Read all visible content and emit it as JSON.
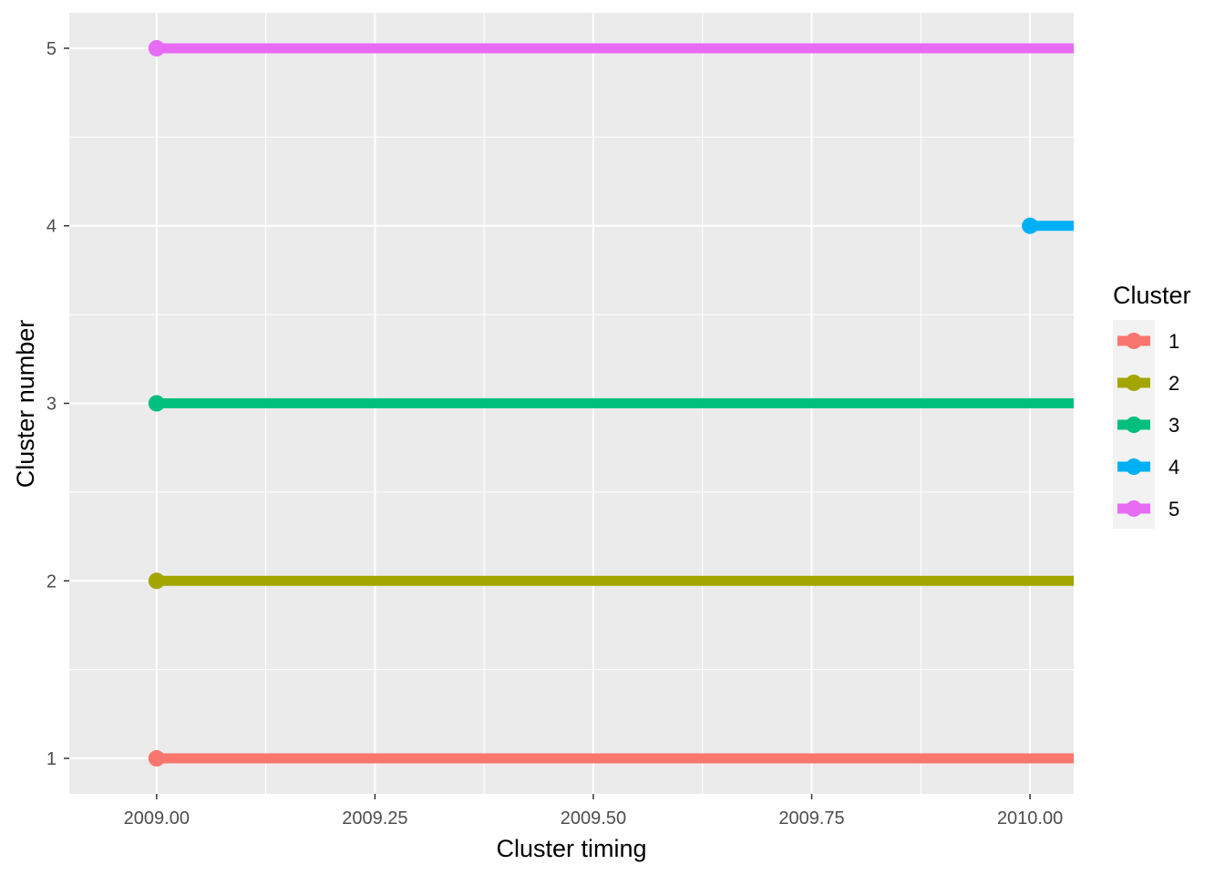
{
  "chart_data": {
    "type": "line",
    "xlabel": "Cluster timing",
    "ylabel": "Cluster number",
    "xlim": [
      2008.9,
      2010.05
    ],
    "ylim": [
      0.8,
      5.2
    ],
    "x_ticks": [
      2009.0,
      2009.25,
      2009.5,
      2009.75,
      2010.0
    ],
    "x_tick_labels": [
      "2009.00",
      "2009.25",
      "2009.50",
      "2009.75",
      "2010.00"
    ],
    "y_ticks": [
      1,
      2,
      3,
      4,
      5
    ],
    "y_tick_labels": [
      "1",
      "2",
      "3",
      "4",
      "5"
    ],
    "grid": true,
    "legend": {
      "title": "Cluster",
      "position": "right"
    },
    "series": [
      {
        "name": "1",
        "color": "#F8766D",
        "x": [
          2009.0,
          2010.05
        ],
        "y": [
          1,
          1
        ]
      },
      {
        "name": "2",
        "color": "#A3A500",
        "x": [
          2009.0,
          2010.05
        ],
        "y": [
          2,
          2
        ]
      },
      {
        "name": "3",
        "color": "#00BF7D",
        "x": [
          2009.0,
          2010.05
        ],
        "y": [
          3,
          3
        ]
      },
      {
        "name": "4",
        "color": "#00B0F6",
        "x": [
          2010.0,
          2010.05
        ],
        "y": [
          4,
          4
        ]
      },
      {
        "name": "5",
        "color": "#E76BF3",
        "x": [
          2009.0,
          2010.05
        ],
        "y": [
          5,
          5
        ]
      }
    ]
  }
}
